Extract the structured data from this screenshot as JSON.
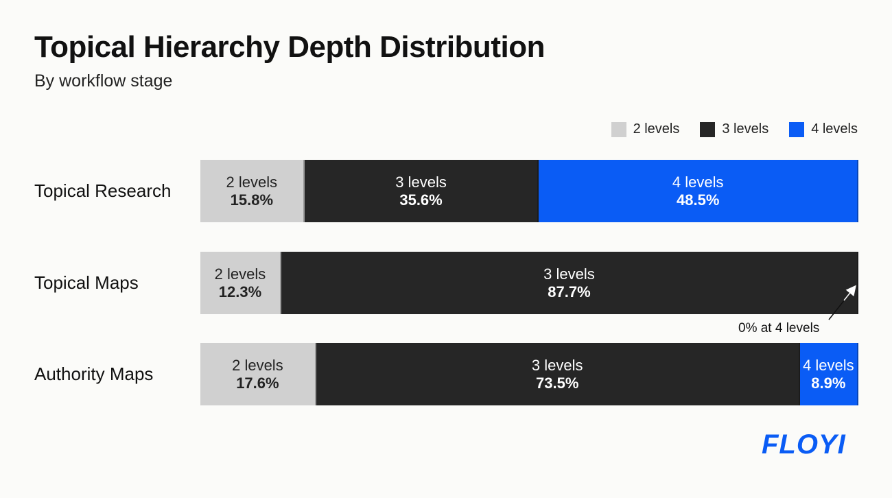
{
  "chart_data": {
    "type": "bar",
    "orientation": "horizontal",
    "stacked": true,
    "title": "Topical Hierarchy Depth Distribution",
    "subtitle": "By workflow stage",
    "legend_position": "top-right",
    "categories": [
      "Topical Research",
      "Topical Maps",
      "Authority Maps"
    ],
    "series": [
      {
        "name": "2 levels",
        "color": "#d0d0d0",
        "text_color": "#222222",
        "values": [
          15.8,
          12.3,
          17.6
        ]
      },
      {
        "name": "3 levels",
        "color": "#262626",
        "text_color": "#ffffff",
        "values": [
          35.6,
          87.7,
          73.5
        ]
      },
      {
        "name": "4 levels",
        "color": "#0a5cf5",
        "text_color": "#ffffff",
        "values": [
          48.5,
          0,
          8.9
        ]
      }
    ],
    "value_suffix": "%",
    "annotation": "0% at 4 levels",
    "grid": false
  },
  "logo": "FLOYI"
}
